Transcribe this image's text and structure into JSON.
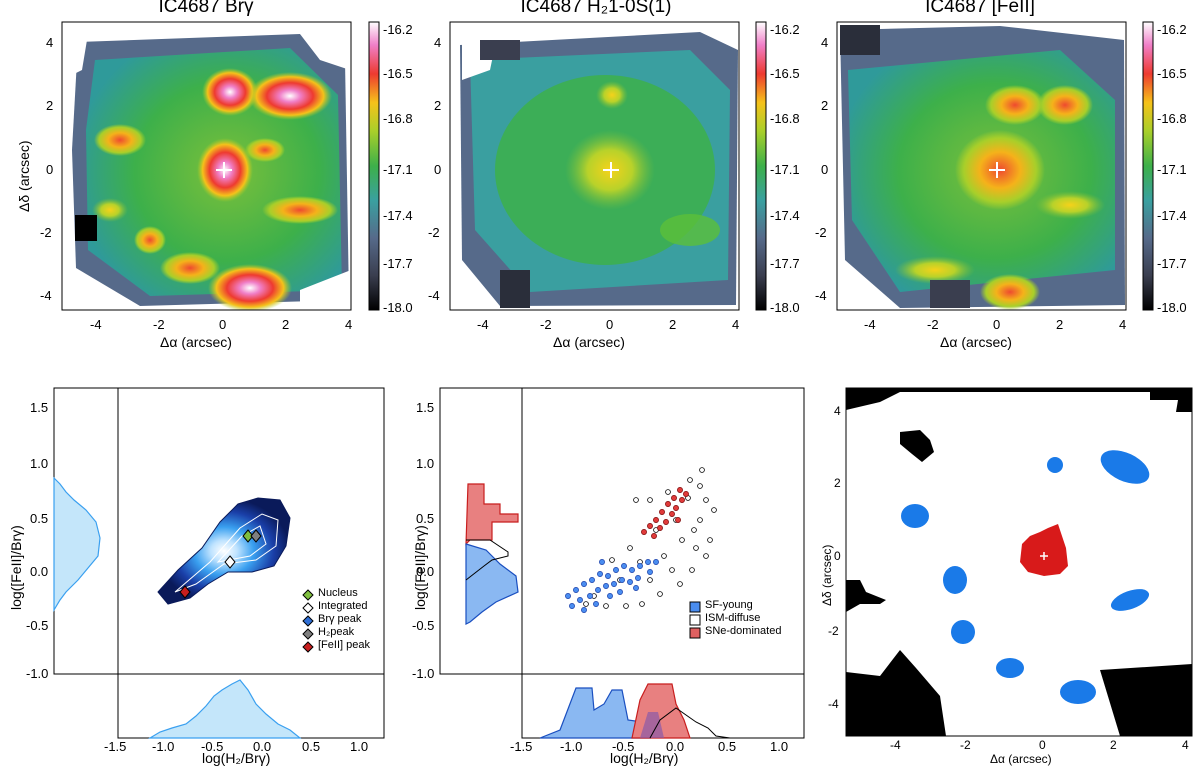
{
  "figure": {
    "maps": [
      {
        "title": "IC4687 Brγ",
        "xlabel": "Δα (arcsec)",
        "ylabel": "Δδ (arcsec)"
      },
      {
        "title": "IC4687 H₂1-0S(1)",
        "xlabel": "Δα (arcsec)",
        "ylabel": ""
      },
      {
        "title": "IC4687 [FeII]",
        "xlabel": "Δα (arcsec)",
        "ylabel": ""
      }
    ],
    "colorbar_ticks": [
      "-16.2",
      "-16.5",
      "-16.8",
      "-17.1",
      "-17.4",
      "-17.7",
      "-18.0"
    ],
    "map_xticks": [
      "-4",
      "-2",
      "0",
      "2",
      "4"
    ],
    "map_yticks": [
      "4",
      "2",
      "0",
      "-2",
      "-4"
    ],
    "diagram_xlabel": "log(H₂/Brγ)",
    "diagram_ylabel": "log([FeII]/Brγ)",
    "diagram_yticks": [
      "1.5",
      "1.0",
      "0.5",
      "0.0",
      "-0.5",
      "-1.0"
    ],
    "diagram_xticks": [
      "-1.5",
      "-1.0",
      "-0.5",
      "0.0",
      "0.5",
      "1.0"
    ],
    "legend_left": [
      "Nucleus",
      "Integrated",
      "Brγ peak",
      "H₂peak",
      "[FeII] peak"
    ],
    "legend_left_colors": [
      "#7fbf3f",
      "#ffffff",
      "#2f6fd6",
      "#7f7f7f",
      "#c81e1e"
    ],
    "legend_mid": [
      "SF-young",
      "ISM-diffuse",
      "SNe-dominated"
    ],
    "legend_mid_colors": [
      "#4a8df0",
      "#ffffff",
      "#e06060"
    ],
    "class_map": {
      "xlabel": "Δα (arcsec)",
      "ylabel": "Δδ (arcsec)"
    }
  },
  "chart_data": [
    {
      "type": "heatmap",
      "title": "IC4687 Brγ",
      "xlabel": "Δα (arcsec)",
      "ylabel": "Δδ (arcsec)",
      "xlim": [
        -5,
        4
      ],
      "ylim": [
        -4.4,
        4.4
      ],
      "colorbar_range": [
        -18.0,
        -16.1
      ]
    },
    {
      "type": "heatmap",
      "title": "IC4687 H₂1-0S(1)",
      "xlabel": "Δα (arcsec)",
      "xlim": [
        -5,
        4
      ],
      "ylim": [
        -4.4,
        4.4
      ],
      "colorbar_range": [
        -18.0,
        -16.1
      ]
    },
    {
      "type": "heatmap",
      "title": "IC4687 [FeII]",
      "xlabel": "Δα (arcsec)",
      "xlim": [
        -5,
        4
      ],
      "ylim": [
        -4.4,
        4.4
      ],
      "colorbar_range": [
        -18.0,
        -16.1
      ]
    },
    {
      "type": "scatter",
      "xlabel": "log(H₂/Brγ)",
      "ylabel": "log([FeII]/Brγ)",
      "xlim": [
        -1.5,
        1.2
      ],
      "ylim": [
        -1.05,
        1.7
      ],
      "points": [
        {
          "name": "Nucleus",
          "x": -0.27,
          "y": 0.31
        },
        {
          "name": "Integrated",
          "x": -0.38,
          "y": 0.08
        },
        {
          "name": "Brγ peak",
          "x": -0.2,
          "y": 0.33
        },
        {
          "name": "H₂peak",
          "x": -0.17,
          "y": 0.32
        },
        {
          "name": "[FeII] peak",
          "x": -0.86,
          "y": -0.17
        }
      ]
    },
    {
      "type": "scatter",
      "xlabel": "log(H₂/Brγ)",
      "ylabel": "log([FeII]/Brγ)",
      "xlim": [
        -1.5,
        1.2
      ],
      "ylim": [
        -1.05,
        1.7
      ],
      "series": [
        {
          "name": "SF-young"
        },
        {
          "name": "ISM-diffuse"
        },
        {
          "name": "SNe-dominated"
        }
      ]
    },
    {
      "type": "heatmap",
      "xlabel": "Δα (arcsec)",
      "ylabel": "Δδ (arcsec)",
      "xlim": [
        -5,
        4.4
      ],
      "ylim": [
        -4.5,
        4.6
      ]
    }
  ]
}
